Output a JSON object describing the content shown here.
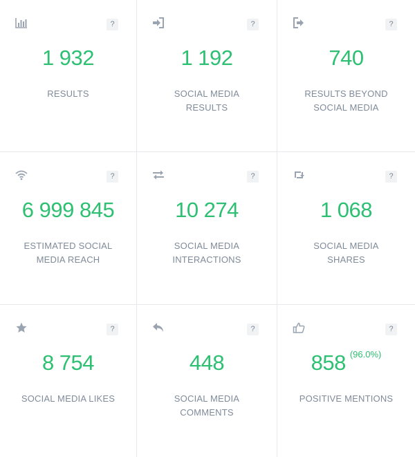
{
  "colors": {
    "value": "#2dbf72",
    "label": "#7f8b99",
    "icon": "#9aa4b1",
    "divider": "#e6e8eb"
  },
  "help_label": "?",
  "cards": [
    {
      "icon": "bar-chart-icon",
      "value": "1 932",
      "label_lines": [
        "RESULTS"
      ]
    },
    {
      "icon": "sign-in-icon",
      "value": "1 192",
      "label_lines": [
        "SOCIAL MEDIA",
        "RESULTS"
      ]
    },
    {
      "icon": "sign-out-icon",
      "value": "740",
      "label_lines": [
        "RESULTS BEYOND",
        "SOCIAL MEDIA"
      ]
    },
    {
      "icon": "wifi-icon",
      "value": "6 999 845",
      "label_lines": [
        "ESTIMATED SOCIAL",
        "MEDIA REACH"
      ]
    },
    {
      "icon": "exchange-icon",
      "value": "10 274",
      "label_lines": [
        "SOCIAL MEDIA",
        "INTERACTIONS"
      ]
    },
    {
      "icon": "retweet-icon",
      "value": "1 068",
      "label_lines": [
        "SOCIAL MEDIA",
        "SHARES"
      ]
    },
    {
      "icon": "star-icon",
      "value": "8 754",
      "label_lines": [
        "SOCIAL MEDIA LIKES"
      ]
    },
    {
      "icon": "reply-icon",
      "value": "448",
      "label_lines": [
        "SOCIAL MEDIA",
        "COMMENTS"
      ]
    },
    {
      "icon": "thumbs-up-icon",
      "value": "858",
      "percentage": "(96.0%)",
      "label_lines": [
        "POSITIVE MENTIONS"
      ]
    }
  ]
}
